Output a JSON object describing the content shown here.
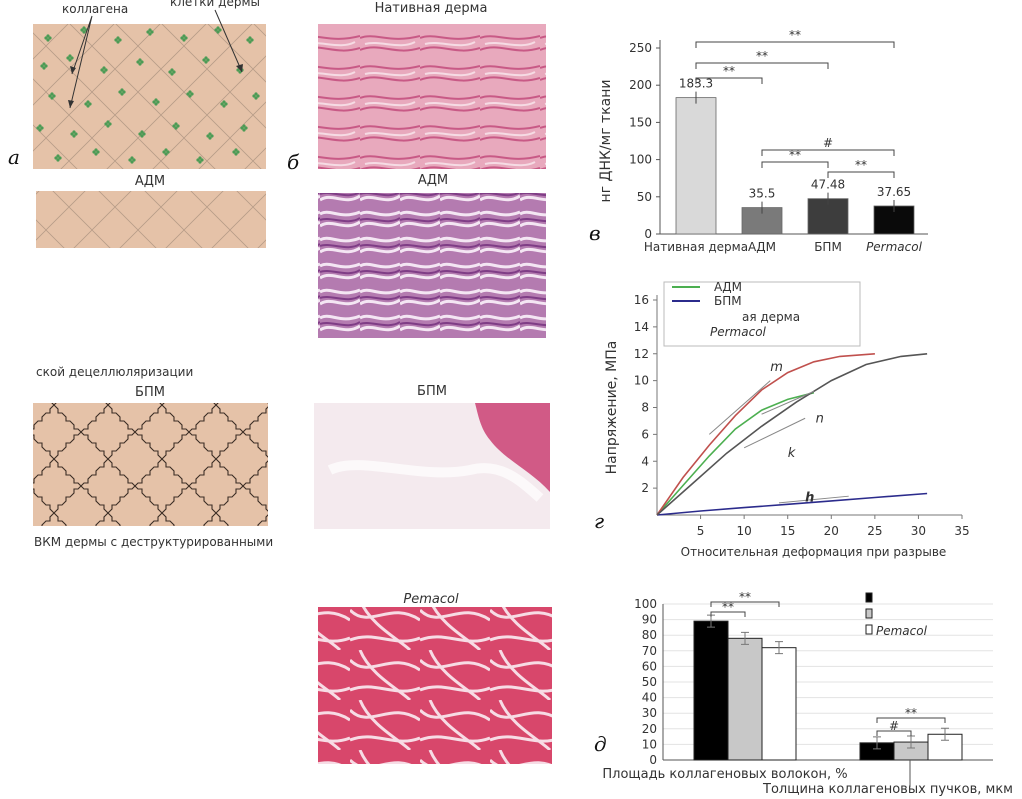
{
  "panel_a": {
    "letter": "а",
    "label_collagen": "коллагена",
    "label_cells": "клетки дермы",
    "adm_title": "АДМ",
    "partial_caption_1": "ской децеллюляризации",
    "bpm_title": "БПМ",
    "partial_caption_2": "ВКМ дермы с деструктурированными"
  },
  "panel_b": {
    "letter": "б",
    "titles": [
      "Нативная дерма",
      "АДМ",
      "БПМ",
      "Pemacol"
    ]
  },
  "panel_v": {
    "letter": "в",
    "chart_data": {
      "type": "bar",
      "ylabel": "нг ДНК/мг ткани",
      "categories": [
        "Нативная дерма",
        "АДМ",
        "БПМ",
        "Permacol"
      ],
      "values": [
        183.3,
        35.5,
        47.48,
        37.65
      ],
      "value_labels": [
        "183.3",
        "35.5",
        "47.48",
        "37.65"
      ],
      "ylim": [
        0,
        250
      ],
      "yticks": [
        "0",
        "50",
        "100",
        "150",
        "200",
        "250"
      ],
      "colors": [
        "#d9d9d9",
        "#7a7a7a",
        "#3d3d3d",
        "#0a0a0a"
      ],
      "significance": [
        {
          "label": "**",
          "from": 0,
          "to": 1
        },
        {
          "label": "**",
          "from": 0,
          "to": 2
        },
        {
          "label": "**",
          "from": 0,
          "to": 3
        },
        {
          "label": "**",
          "from": 1,
          "to": 2
        },
        {
          "label": "#",
          "from": 1,
          "to": 3
        },
        {
          "label": "**",
          "from": 2,
          "to": 3
        }
      ]
    }
  },
  "panel_g": {
    "letter": "г",
    "chart_data": {
      "type": "line",
      "ylabel": "Напряжение, МПа",
      "xlabel": "Относительная деформация при разрыве",
      "xlim": [
        0,
        35
      ],
      "ylim": [
        0,
        16
      ],
      "xticks": [
        "5",
        "10",
        "15",
        "20",
        "25",
        "30",
        "35"
      ],
      "yticks": [
        "2",
        "4",
        "6",
        "8",
        "10",
        "12",
        "14",
        "16"
      ],
      "legend": [
        "АДМ",
        "БПМ",
        "ая дерма",
        "Permacol"
      ],
      "series": [
        {
          "name": "АДМ",
          "color": "#4caf50",
          "x": [
            0,
            3,
            6,
            9,
            12,
            15,
            18
          ],
          "y": [
            0,
            2.2,
            4.4,
            6.4,
            7.8,
            8.6,
            9.1
          ]
        },
        {
          "name": "БПМ",
          "color": "#2b2b8c",
          "x": [
            0,
            5,
            10,
            15,
            20,
            25,
            31
          ],
          "y": [
            0,
            0.3,
            0.55,
            0.8,
            1.05,
            1.3,
            1.6
          ]
        },
        {
          "name": "",
          "color": "#c0504d",
          "x": [
            0,
            3,
            6,
            9,
            12,
            15,
            18,
            21,
            25
          ],
          "y": [
            0,
            2.8,
            5.2,
            7.4,
            9.3,
            10.6,
            11.4,
            11.8,
            12.0
          ]
        },
        {
          "name": "Permacol",
          "color": "#555555",
          "x": [
            0,
            4,
            8,
            12,
            16,
            20,
            24,
            28,
            31
          ],
          "y": [
            0,
            2.3,
            4.6,
            6.6,
            8.4,
            10.0,
            11.2,
            11.8,
            12.0
          ]
        }
      ],
      "annotations": [
        "m",
        "n",
        "k",
        "h"
      ]
    }
  },
  "panel_d": {
    "letter": "д",
    "chart_data": {
      "type": "bar",
      "categories": [
        "Площадь коллагеновых волокон, %",
        "Толщина коллагеновых пучков, мкм"
      ],
      "series": [
        {
          "name": "",
          "color": "#000000",
          "values": [
            89,
            11
          ]
        },
        {
          "name": "",
          "color": "#c8c8c8",
          "values": [
            78,
            11.5
          ]
        },
        {
          "name": "Pemacol",
          "color": "#ffffff",
          "values": [
            72,
            16.5
          ]
        }
      ],
      "ylim": [
        0,
        100
      ],
      "yticks": [
        "0",
        "10",
        "20",
        "30",
        "40",
        "50",
        "60",
        "70",
        "80",
        "90",
        "100"
      ],
      "significance_group1": [
        "**",
        "**"
      ],
      "significance_group2": [
        "#",
        "**"
      ]
    }
  }
}
